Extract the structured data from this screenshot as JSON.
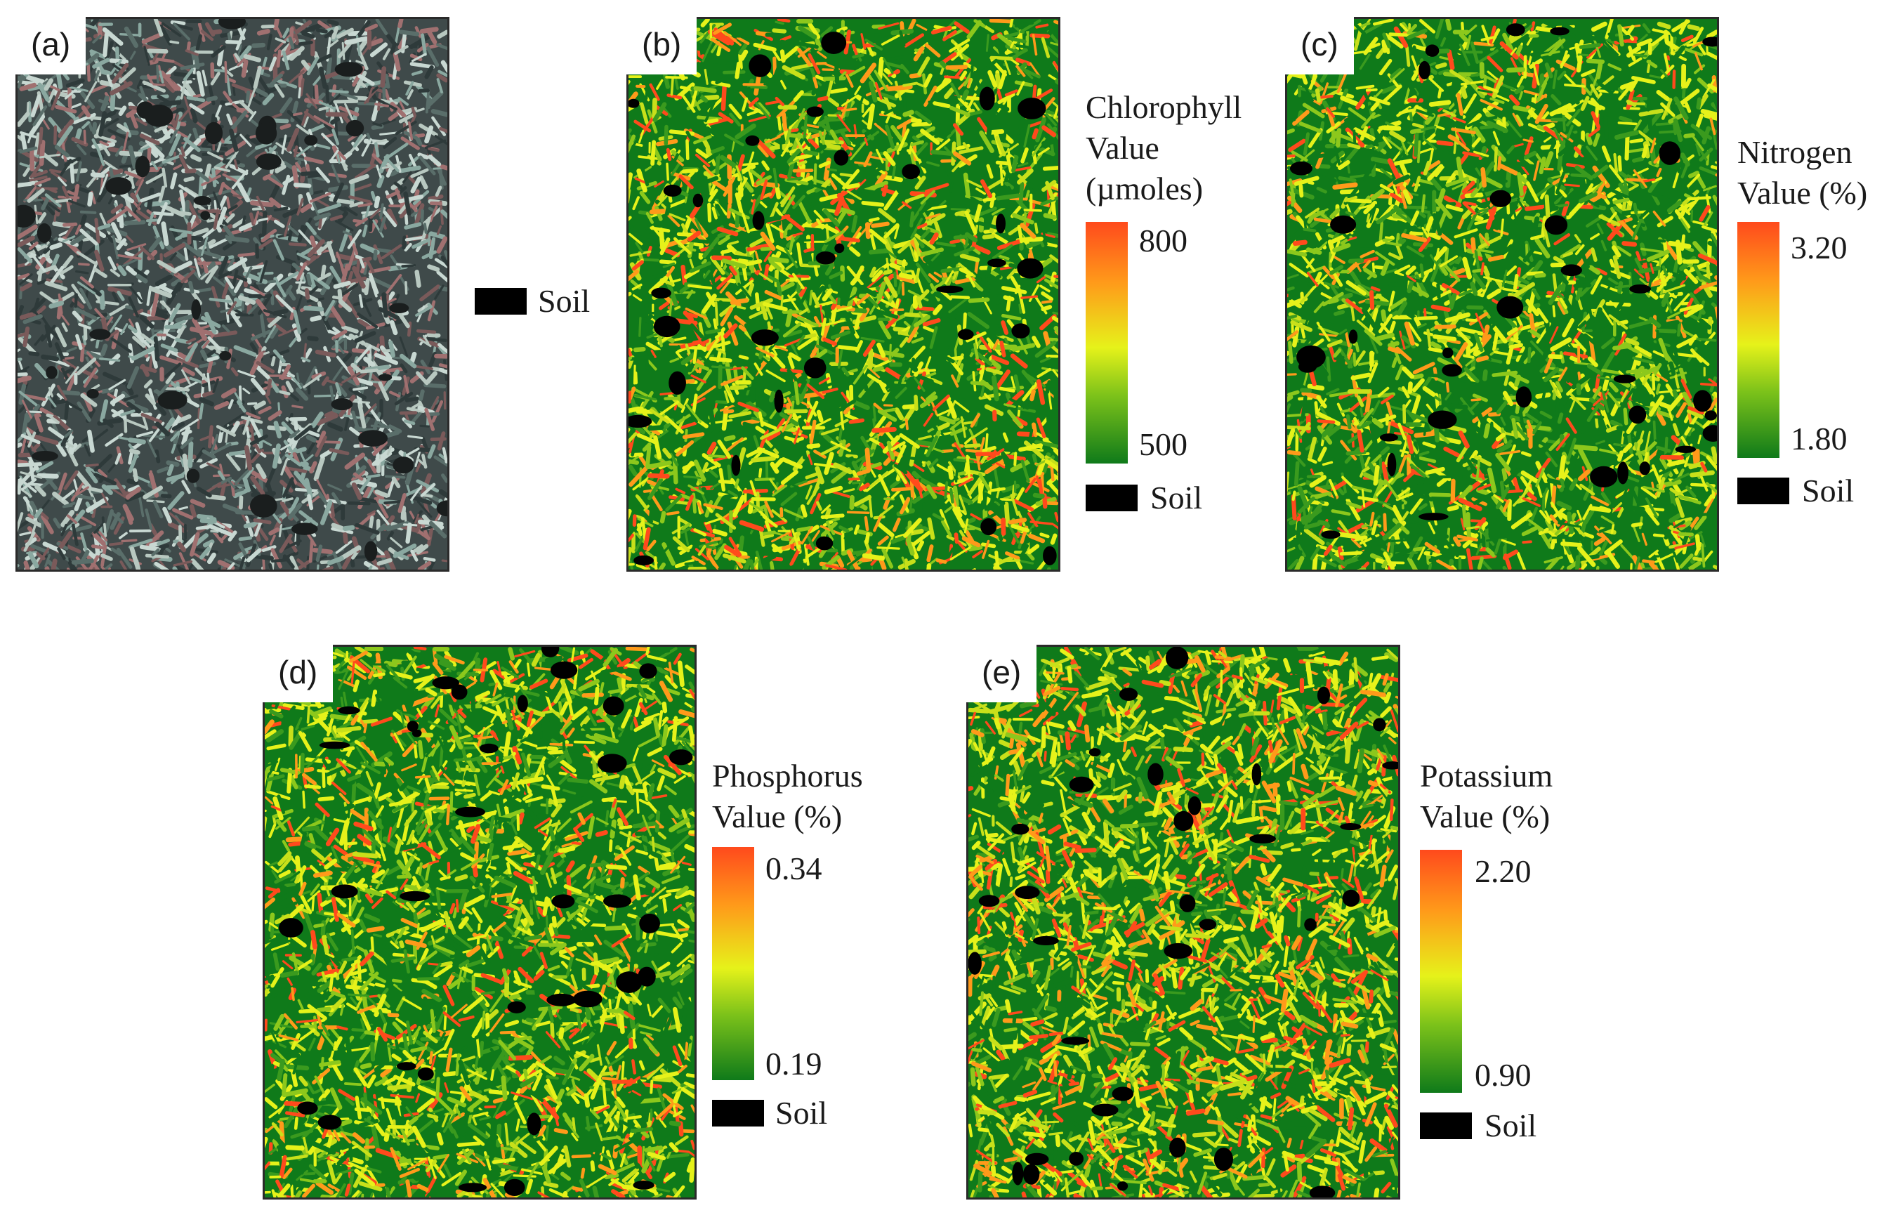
{
  "panels": [
    {
      "id": "a",
      "label": "(a)",
      "palette": "rgb"
    },
    {
      "id": "b",
      "label": "(b)",
      "palette": "heat",
      "title_lines": [
        "Chlorophyll",
        "Value",
        "(µmoles)"
      ],
      "max": "800",
      "min": "500",
      "soil": "Soil",
      "mix": 0.45
    },
    {
      "id": "c",
      "label": "(c)",
      "palette": "heat",
      "title_lines": [
        "Nitrogen",
        "Value (%)"
      ],
      "max": "3.20",
      "min": "1.80",
      "soil": "Soil",
      "mix": 0.3
    },
    {
      "id": "d",
      "label": "(d)",
      "palette": "heat",
      "title_lines": [
        "Phosphorus",
        "Value (%)"
      ],
      "max": "0.34",
      "min": "0.19",
      "soil": "Soil",
      "mix": 0.35
    },
    {
      "id": "e",
      "label": "(e)",
      "palette": "heat",
      "title_lines": [
        "Potassium",
        "Value (%)"
      ],
      "max": "2.20",
      "min": "0.90",
      "soil": "Soil",
      "mix": 0.55
    }
  ],
  "rgb_legend": {
    "soil": "Soil"
  },
  "colors": {
    "high": "#ff4a1c",
    "mid": "#e6f21a",
    "low": "#0f7a1a",
    "soil": "#000000"
  }
}
